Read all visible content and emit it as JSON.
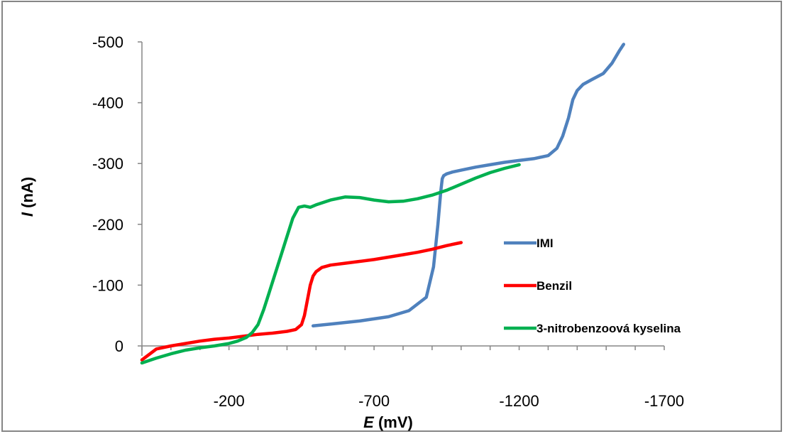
{
  "chart_data": {
    "type": "line",
    "title": "",
    "xlabel_italic": "E",
    "xlabel_rest": " (mV)",
    "ylabel_italic": "I",
    "ylabel_rest": " (nA)",
    "xlim": [
      100,
      -1700
    ],
    "ylim": [
      0,
      -500
    ],
    "x_ticks": [
      -200,
      -700,
      -1200,
      -1700
    ],
    "y_ticks": [
      0,
      -100,
      -200,
      -300,
      -400,
      -500
    ],
    "x_tick_labels": [
      "-200",
      "-700",
      "-1200",
      "-1700"
    ],
    "y_tick_labels": [
      "0",
      "-100",
      "-200",
      "-300",
      "-400",
      "-500"
    ],
    "grid": false,
    "legend_position": "right",
    "series": [
      {
        "name": "IMI",
        "color": "#4F81BD",
        "x": [
          -490,
          -550,
          -650,
          -750,
          -820,
          -880,
          -905,
          -920,
          -930,
          -935,
          -940,
          -950,
          -970,
          -1000,
          -1050,
          -1100,
          -1150,
          -1200,
          -1250,
          -1300,
          -1330,
          -1350,
          -1370,
          -1385,
          -1400,
          -1420,
          -1450,
          -1490,
          -1520,
          -1545,
          -1560
        ],
        "y": [
          -33,
          -36,
          -41,
          -48,
          -58,
          -80,
          -130,
          -200,
          -255,
          -275,
          -280,
          -283,
          -286,
          -289,
          -294,
          -298,
          -302,
          -305,
          -308,
          -313,
          -325,
          -345,
          -375,
          -405,
          -420,
          -430,
          -438,
          -448,
          -465,
          -485,
          -496
        ]
      },
      {
        "name": "Benzil",
        "color": "#FF0000",
        "x": [
          100,
          50,
          0,
          -50,
          -100,
          -150,
          -200,
          -250,
          -300,
          -350,
          -400,
          -430,
          -450,
          -460,
          -470,
          -480,
          -490,
          -500,
          -520,
          -550,
          -600,
          -650,
          -700,
          -750,
          -800,
          -850,
          -900,
          -950,
          -1000
        ],
        "y": [
          23,
          5,
          0,
          -4,
          -8,
          -11,
          -13,
          -16,
          -19,
          -21,
          -24,
          -27,
          -35,
          -50,
          -75,
          -100,
          -115,
          -122,
          -129,
          -133,
          -136,
          -139,
          -142,
          -146,
          -150,
          -154,
          -159,
          -165,
          -170
        ]
      },
      {
        "name": "3-nitrobenzoová kyselina",
        "color": "#00B050",
        "x": [
          100,
          50,
          0,
          -50,
          -100,
          -150,
          -200,
          -230,
          -260,
          -280,
          -300,
          -320,
          -340,
          -360,
          -380,
          -400,
          -420,
          -440,
          -460,
          -480,
          -500,
          -550,
          -600,
          -650,
          -700,
          -750,
          -800,
          -850,
          -900,
          -950,
          -1000,
          -1050,
          -1100,
          -1150,
          -1200
        ],
        "y": [
          28,
          20,
          13,
          7,
          3,
          0,
          -4,
          -8,
          -14,
          -22,
          -35,
          -60,
          -90,
          -120,
          -150,
          -180,
          -210,
          -228,
          -230,
          -228,
          -232,
          -240,
          -245,
          -244,
          -240,
          -237,
          -238,
          -242,
          -248,
          -256,
          -266,
          -276,
          -285,
          -292,
          -298
        ]
      }
    ]
  }
}
